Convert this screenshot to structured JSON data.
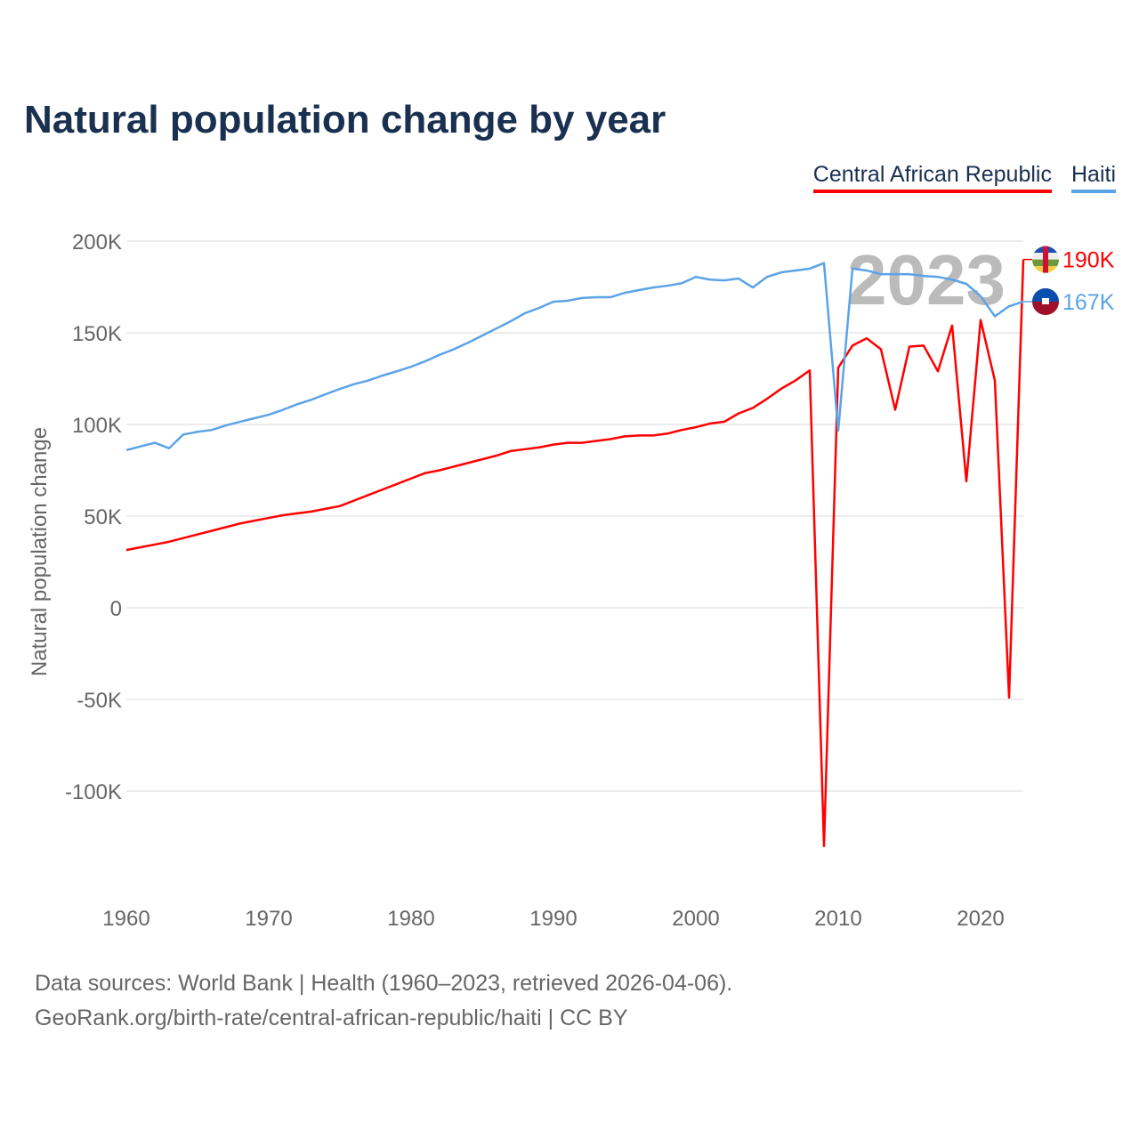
{
  "title": "Natural population change by year",
  "legend": [
    "Central African Republic",
    "Haiti"
  ],
  "year_watermark": "2023",
  "footer": {
    "line1": "Data sources: World Bank | Health (1960–2023, retrieved 2026-04-06).",
    "line2": "GeoRank.org/birth-rate/central-african-republic/haiti | CC BY"
  },
  "chart_data": {
    "type": "line",
    "title": "Natural population change by year",
    "xlabel": "",
    "ylabel": "Natural population change",
    "xlim": [
      1960,
      2023
    ],
    "ylim": [
      -150000,
      200000
    ],
    "x_ticks": [
      1960,
      1970,
      1980,
      1990,
      2000,
      2010,
      2020
    ],
    "y_ticks": [
      200000,
      150000,
      100000,
      50000,
      0,
      -50000,
      -100000
    ],
    "y_tick_labels": [
      "200K",
      "150K",
      "100K",
      "50K",
      "0",
      "-50K",
      "-100K"
    ],
    "grid": true,
    "legend_position": "top-right",
    "x": [
      1960,
      1961,
      1962,
      1963,
      1964,
      1965,
      1966,
      1967,
      1968,
      1969,
      1970,
      1971,
      1972,
      1973,
      1974,
      1975,
      1976,
      1977,
      1978,
      1979,
      1980,
      1981,
      1982,
      1983,
      1984,
      1985,
      1986,
      1987,
      1988,
      1989,
      1990,
      1991,
      1992,
      1993,
      1994,
      1995,
      1996,
      1997,
      1998,
      1999,
      2000,
      2001,
      2002,
      2003,
      2004,
      2005,
      2006,
      2007,
      2008,
      2009,
      2010,
      2011,
      2012,
      2013,
      2014,
      2015,
      2016,
      2017,
      2018,
      2019,
      2020,
      2021,
      2022,
      2023
    ],
    "series": [
      {
        "name": "Central African Republic",
        "color": "#ff0000",
        "end_label": "190K",
        "values": [
          31500,
          33000,
          34500,
          36000,
          38000,
          40000,
          42000,
          44000,
          46000,
          47500,
          49000,
          50500,
          51500,
          52500,
          54000,
          55500,
          58500,
          61500,
          64500,
          67500,
          70500,
          73500,
          75000,
          77000,
          79000,
          81000,
          83000,
          85500,
          86500,
          87500,
          89000,
          90000,
          90000,
          91000,
          92000,
          93500,
          94000,
          94000,
          95000,
          97000,
          98500,
          100500,
          101500,
          106000,
          109000,
          114000,
          119500,
          124000,
          129500,
          -130000,
          131000,
          143000,
          147000,
          141000,
          108000,
          142500,
          143000,
          129000,
          154000,
          69000,
          157000,
          124000,
          -49000,
          190000
        ]
      },
      {
        "name": "Haiti",
        "color": "#5ba3e8",
        "end_label": "167K",
        "values": [
          86000,
          88000,
          90000,
          87000,
          94500,
          96000,
          97000,
          99500,
          101500,
          103400,
          105300,
          108000,
          111000,
          113500,
          116500,
          119400,
          122000,
          124000,
          126700,
          129000,
          131500,
          134500,
          138000,
          141000,
          144600,
          148500,
          152400,
          156300,
          160700,
          163600,
          167000,
          167500,
          169000,
          169400,
          169400,
          171800,
          173300,
          174700,
          175700,
          177000,
          180500,
          179000,
          178600,
          179600,
          174700,
          180500,
          183000,
          184000,
          185000,
          188000,
          96600,
          185000,
          184000,
          182000,
          182000,
          182000,
          181000,
          180500,
          179000,
          176700,
          170000,
          159000,
          164500,
          167000
        ]
      }
    ]
  }
}
